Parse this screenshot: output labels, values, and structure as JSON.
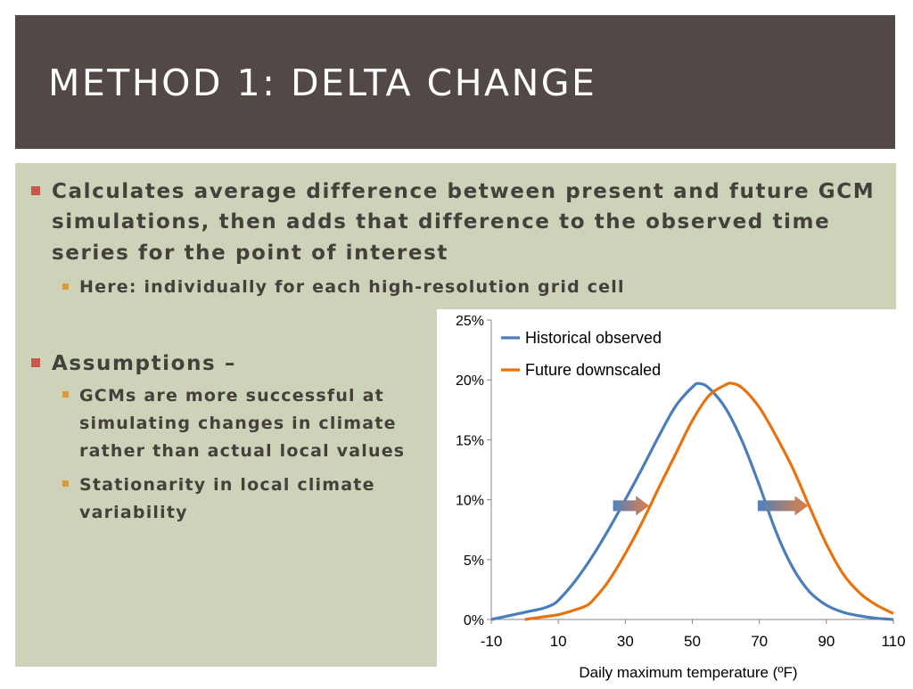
{
  "slide": {
    "title": "METHOD 1: DELTA CHANGE",
    "bullets": [
      {
        "text_lines": [
          "Calculates average difference between present and future GCM",
          "simulations, then adds that difference to the observed time",
          "series for the point of interest"
        ],
        "sub": [
          "Here: individually for each high-resolution grid cell"
        ]
      },
      {
        "text_lines": [
          "Assumptions –"
        ],
        "sub": [
          {
            "lines": [
              "GCMs are more successful at",
              "simulating changes in climate",
              "rather than actual local values"
            ]
          },
          {
            "lines": [
              "Stationarity in local climate",
              "variability"
            ]
          }
        ]
      }
    ],
    "colors": {
      "title_bg": "#524846",
      "panel_bg": "#cdd3b8",
      "bullet_marker": "#c9564a",
      "sub_bullet_marker": "#d69a3f",
      "text": "#45403c"
    }
  },
  "chart_data": {
    "type": "line",
    "title": "",
    "xlabel": "Daily maximum temperature (ºF)",
    "ylabel": "",
    "xlim": [
      -10,
      110
    ],
    "ylim": [
      0,
      25
    ],
    "x_ticks": [
      "-10",
      "10",
      "30",
      "50",
      "70",
      "90",
      "110"
    ],
    "y_ticks": [
      "0%",
      "5%",
      "10%",
      "15%",
      "20%",
      "25%"
    ],
    "grid": false,
    "legend_position": "top-left",
    "series": [
      {
        "name": "Historical observed",
        "color": "#4a7ebb",
        "x": [
          -10,
          -5,
          0,
          5,
          8,
          10,
          15,
          20,
          25,
          30,
          35,
          40,
          45,
          50,
          52,
          55,
          60,
          65,
          70,
          75,
          80,
          85,
          90,
          95,
          100,
          105,
          110
        ],
        "y": [
          0,
          0.3,
          0.6,
          0.9,
          1.2,
          1.6,
          3.2,
          5.2,
          7.5,
          10,
          12.6,
          15.3,
          17.8,
          19.4,
          19.7,
          19.3,
          17.6,
          14.8,
          11.2,
          7.3,
          4.3,
          2.3,
          1.2,
          0.6,
          0.3,
          0.1,
          0
        ]
      },
      {
        "name": "Future downscaled",
        "color": "#e6730f",
        "x": [
          0,
          5,
          10,
          15,
          18,
          20,
          25,
          30,
          35,
          40,
          45,
          50,
          55,
          60,
          62,
          65,
          70,
          75,
          80,
          85,
          90,
          95,
          100,
          105,
          110
        ],
        "y": [
          0,
          0.2,
          0.4,
          0.8,
          1.1,
          1.5,
          3.2,
          5.5,
          8.1,
          11,
          13.8,
          16.6,
          18.7,
          19.6,
          19.7,
          19.3,
          17.7,
          15.3,
          12.6,
          9.4,
          6.3,
          3.8,
          2.2,
          1.2,
          0.5
        ]
      }
    ],
    "annotations": [
      {
        "type": "arrow",
        "direction": "right",
        "from_series": "Historical observed",
        "to_series": "Future downscaled",
        "at_y": 9.5,
        "side": "left"
      },
      {
        "type": "arrow",
        "direction": "right",
        "from_series": "Historical observed",
        "to_series": "Future downscaled",
        "at_y": 9.5,
        "side": "right"
      }
    ]
  }
}
